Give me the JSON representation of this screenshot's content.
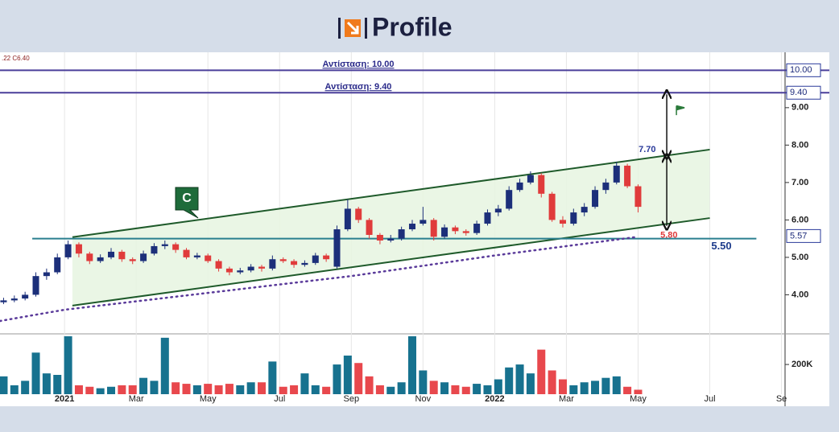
{
  "header": {
    "title": "Profile"
  },
  "chart_data": {
    "type": "candlestick",
    "info": ".22 C6.40",
    "x": [
      -1.7,
      -1.4,
      -1.1,
      -0.8,
      -0.5,
      -0.2,
      0.1,
      0.4,
      0.7,
      1.0,
      1.3,
      1.6,
      1.9,
      2.2,
      2.5,
      2.8,
      3.1,
      3.4,
      3.7,
      4.0,
      4.3,
      4.6,
      4.9,
      5.2,
      5.5,
      5.8,
      6.1,
      6.4,
      6.7,
      7.0,
      7.3,
      7.6,
      7.9,
      8.2,
      8.5,
      8.8,
      9.1,
      9.4,
      9.7,
      10.0,
      10.3,
      10.6,
      10.9,
      11.2,
      11.5,
      11.8,
      12.1,
      12.4,
      12.7,
      13.0,
      13.3,
      13.6,
      13.9,
      14.2,
      14.5,
      14.8,
      15.1,
      15.4,
      15.7,
      16.0
    ],
    "ohlc": [
      [
        3.8,
        3.92,
        3.75,
        3.85
      ],
      [
        3.85,
        3.98,
        3.8,
        3.9
      ],
      [
        3.9,
        4.08,
        3.85,
        4.0
      ],
      [
        4.0,
        4.6,
        3.95,
        4.5
      ],
      [
        4.5,
        4.7,
        4.4,
        4.6
      ],
      [
        4.6,
        5.1,
        4.55,
        5.0
      ],
      [
        5.0,
        5.45,
        4.95,
        5.35
      ],
      [
        5.35,
        5.4,
        5.0,
        5.1
      ],
      [
        5.1,
        5.15,
        4.82,
        4.9
      ],
      [
        4.9,
        5.08,
        4.85,
        5.0
      ],
      [
        5.0,
        5.25,
        4.95,
        5.15
      ],
      [
        5.15,
        5.2,
        4.88,
        4.95
      ],
      [
        4.95,
        5.0,
        4.82,
        4.9
      ],
      [
        4.9,
        5.18,
        4.85,
        5.1
      ],
      [
        5.1,
        5.38,
        5.05,
        5.3
      ],
      [
        5.3,
        5.45,
        5.22,
        5.35
      ],
      [
        5.35,
        5.4,
        5.12,
        5.2
      ],
      [
        5.2,
        5.25,
        4.95,
        5.0
      ],
      [
        5.0,
        5.12,
        4.95,
        5.05
      ],
      [
        5.05,
        5.1,
        4.85,
        4.9
      ],
      [
        4.9,
        4.95,
        4.62,
        4.7
      ],
      [
        4.7,
        4.75,
        4.52,
        4.6
      ],
      [
        4.6,
        4.72,
        4.55,
        4.65
      ],
      [
        4.65,
        4.82,
        4.6,
        4.75
      ],
      [
        4.75,
        4.8,
        4.62,
        4.7
      ],
      [
        4.7,
        5.05,
        4.65,
        4.95
      ],
      [
        4.95,
        5.0,
        4.85,
        4.9
      ],
      [
        4.9,
        4.95,
        4.72,
        4.8
      ],
      [
        4.8,
        4.92,
        4.75,
        4.85
      ],
      [
        4.85,
        5.12,
        4.8,
        5.05
      ],
      [
        5.05,
        5.1,
        4.88,
        4.95
      ],
      [
        4.75,
        5.85,
        4.7,
        5.75
      ],
      [
        5.75,
        6.55,
        5.7,
        6.3
      ],
      [
        6.3,
        6.35,
        5.92,
        6.0
      ],
      [
        6.0,
        6.05,
        5.5,
        5.6
      ],
      [
        5.6,
        5.65,
        5.35,
        5.45
      ],
      [
        5.45,
        5.6,
        5.4,
        5.5
      ],
      [
        5.5,
        5.82,
        5.45,
        5.75
      ],
      [
        5.75,
        6.0,
        5.7,
        5.9
      ],
      [
        5.9,
        6.35,
        5.85,
        6.0
      ],
      [
        6.0,
        6.05,
        5.45,
        5.55
      ],
      [
        5.55,
        5.88,
        5.5,
        5.8
      ],
      [
        5.8,
        5.85,
        5.62,
        5.7
      ],
      [
        5.7,
        5.75,
        5.58,
        5.65
      ],
      [
        5.65,
        5.98,
        5.6,
        5.9
      ],
      [
        5.9,
        6.28,
        5.85,
        6.2
      ],
      [
        6.2,
        6.4,
        6.1,
        6.3
      ],
      [
        6.3,
        6.9,
        6.25,
        6.8
      ],
      [
        6.8,
        7.1,
        6.75,
        7.0
      ],
      [
        7.0,
        7.3,
        6.95,
        7.2
      ],
      [
        7.2,
        7.25,
        6.6,
        6.7
      ],
      [
        6.7,
        6.75,
        5.95,
        6.0
      ],
      [
        6.0,
        6.1,
        5.8,
        5.9
      ],
      [
        5.9,
        6.3,
        5.85,
        6.2
      ],
      [
        6.2,
        6.45,
        6.1,
        6.35
      ],
      [
        6.35,
        6.9,
        6.3,
        6.8
      ],
      [
        6.8,
        7.1,
        6.7,
        7.0
      ],
      [
        7.0,
        7.55,
        6.95,
        7.45
      ],
      [
        7.45,
        7.5,
        6.85,
        6.9
      ],
      [
        6.9,
        6.95,
        6.2,
        6.35
      ]
    ],
    "volume": [
      120000,
      60000,
      90000,
      280000,
      140000,
      130000,
      390000,
      60000,
      50000,
      40000,
      50000,
      60000,
      60000,
      110000,
      90000,
      380000,
      80000,
      70000,
      60000,
      70000,
      60000,
      70000,
      60000,
      80000,
      80000,
      220000,
      50000,
      60000,
      140000,
      60000,
      50000,
      200000,
      260000,
      210000,
      120000,
      60000,
      50000,
      80000,
      390000,
      160000,
      90000,
      80000,
      60000,
      50000,
      70000,
      60000,
      100000,
      180000,
      200000,
      140000,
      300000,
      160000,
      100000,
      60000,
      80000,
      90000,
      110000,
      120000,
      50000,
      30000
    ],
    "up_color": "#1c2f7a",
    "down_color": "#e03b3b",
    "vol_up_color": "#17728f",
    "vol_down_color": "#e8484d",
    "xlim": [
      -1.8,
      20.1
    ],
    "ylim": [
      3.02,
      10.48
    ],
    "vol_ylim": [
      0,
      390000
    ],
    "xticks": [
      {
        "value": 0,
        "label": "2021"
      },
      {
        "value": 2,
        "label": "Mar"
      },
      {
        "value": 4,
        "label": "May"
      },
      {
        "value": 6,
        "label": "Jul"
      },
      {
        "value": 8,
        "label": "Sep"
      },
      {
        "value": 10,
        "label": "Nov"
      },
      {
        "value": 12,
        "label": "2022"
      },
      {
        "value": 14,
        "label": "Mar"
      },
      {
        "value": 16,
        "label": "May"
      },
      {
        "value": 18,
        "label": "Jul"
      },
      {
        "value": 20,
        "label": "Se"
      }
    ],
    "yticks": [
      {
        "value": 4,
        "label": "4.00"
      },
      {
        "value": 5,
        "label": "5.00"
      },
      {
        "value": 6,
        "label": "6.00"
      },
      {
        "value": 7,
        "label": "7.00"
      },
      {
        "value": 8,
        "label": "8.00"
      },
      {
        "value": 9,
        "label": "9.00"
      }
    ],
    "vol_yticks": [
      {
        "value": 200000,
        "label": "200K"
      }
    ],
    "resistances": [
      {
        "value": 10,
        "label": "Αντίσταση: 10.00"
      },
      {
        "value": 9.4,
        "label": "Αντίσταση: 9.40"
      }
    ],
    "price_markers": [
      {
        "value": 10,
        "label": "10.00"
      },
      {
        "value": 9.4,
        "label": "9.40"
      },
      {
        "value": 5.57,
        "label": "5.57"
      }
    ],
    "channel": {
      "upper": {
        "x": [
          0.22,
          18
        ],
        "values": [
          5.54,
          7.88
        ]
      },
      "lower": {
        "x": [
          0.22,
          18
        ],
        "values": [
          3.71,
          6.05
        ]
      }
    },
    "support": {
      "value": 5.5,
      "label": "5.50",
      "x": [
        -0.9,
        19.3
      ]
    },
    "ma": {
      "x": [
        -1.8,
        0,
        4,
        8,
        12,
        16
      ],
      "values": [
        3.3,
        3.6,
        4.05,
        4.5,
        5.05,
        5.55
      ]
    },
    "target_high": {
      "value": 7.7,
      "label": "7.70"
    },
    "target_low": {
      "value": 5.8,
      "label": "5.80"
    },
    "pattern_label": "C"
  }
}
